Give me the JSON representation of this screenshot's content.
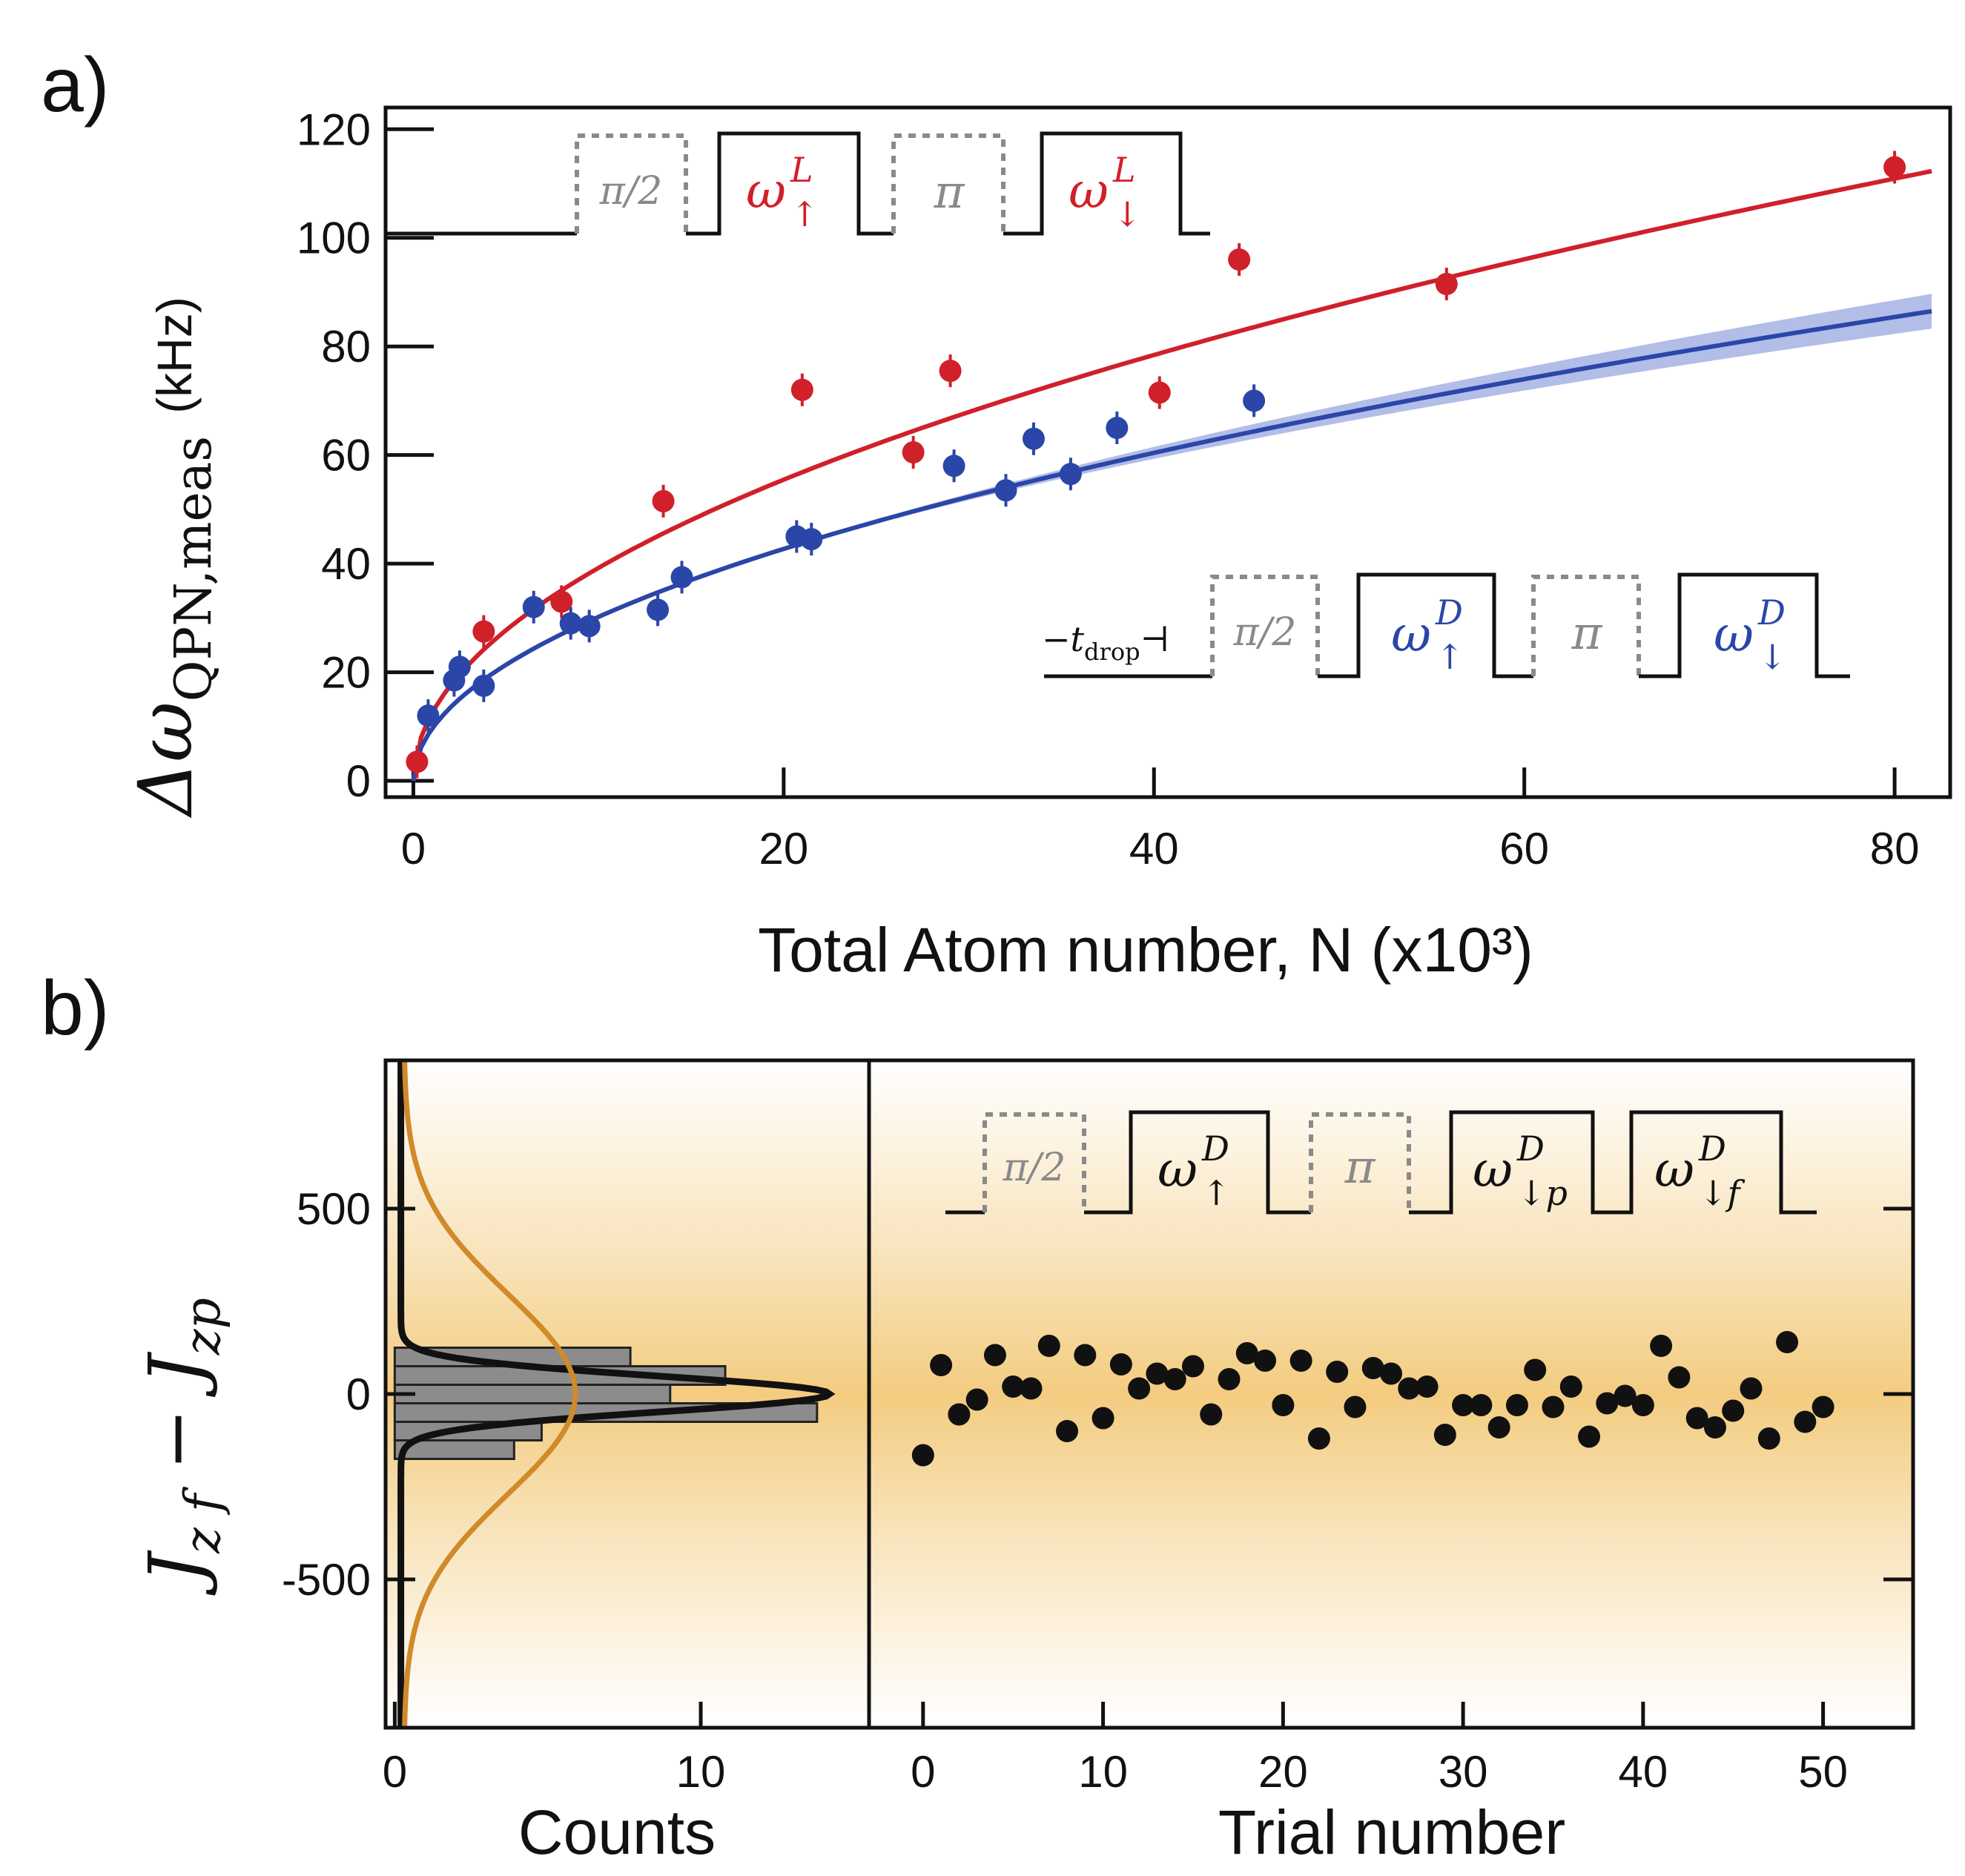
{
  "colors": {
    "red": "#d0202a",
    "blue": "#2a46a8",
    "blue_band": "#aab6e6",
    "gray": "#8a8a8a",
    "black": "#111111",
    "gold": "#d08a2a",
    "bar": "#8c8c8c",
    "bg_gold": "#f3cc80"
  },
  "panel_a": {
    "label": "a)",
    "xlabel": "Total Atom number, N (x10³)",
    "ylabel_main": "Δω",
    "ylabel_sub": "QPN,meas",
    "ylabel_unit": "(kHz)",
    "sequence_L": {
      "pi2": "π/2",
      "w_up": "ω",
      "w_up_sup": "L",
      "w_up_sub": "↑",
      "pi": "π",
      "w_down": "ω",
      "w_down_sup": "L",
      "w_down_sub": "↓"
    },
    "sequence_D": {
      "tdrop": "−t",
      "tdrop_sub": "drop",
      "tdrop_end": "⊣",
      "pi2": "π/2",
      "w_up": "ω",
      "w_up_sup": "D",
      "w_up_sub": "↑",
      "pi": "π",
      "w_down": "ω",
      "w_down_sup": "D",
      "w_down_sub": "↓"
    }
  },
  "panel_b": {
    "label": "b)",
    "xlabel_left": "Counts",
    "xlabel_right": "Trial number",
    "ylabel": "J",
    "ylabel_sub1": "z f",
    "ylabel_minus": " − J",
    "ylabel_sub2": "zp",
    "sequence": {
      "pi2": "π/2",
      "w1": "ω",
      "w1_sup": "D",
      "w1_sub": "↑",
      "pi": "π",
      "w2": "ω",
      "w2_sup": "D",
      "w2_sub": "↓p",
      "w3": "ω",
      "w3_sup": "D",
      "w3_sub": "↓f"
    }
  },
  "chart_data": [
    {
      "type": "scatter",
      "title": "",
      "xlabel": "Total Atom number, N (x10³)",
      "ylabel": "ΔωQPN,meas (kHz)",
      "xlim": [
        -1.5,
        83
      ],
      "ylim": [
        -3,
        124
      ],
      "xticks": [
        0,
        20,
        40,
        60,
        80
      ],
      "yticks": [
        0,
        20,
        40,
        60,
        80,
        100,
        120
      ],
      "series": [
        {
          "name": "red (L)",
          "color": "red",
          "points": [
            [
              0.2,
              3.5
            ],
            [
              3.8,
              27.5
            ],
            [
              8,
              33
            ],
            [
              13.5,
              51.5
            ],
            [
              21,
              72
            ],
            [
              27,
              60.5
            ],
            [
              29,
              75.5
            ],
            [
              40.3,
              71.5
            ],
            [
              44.6,
              96
            ],
            [
              55.8,
              91.5
            ],
            [
              80,
              113
            ]
          ],
          "fit": {
            "model": "a*sqrt(N)",
            "a": 12.4,
            "xrange": [
              0,
              82
            ]
          }
        },
        {
          "name": "blue (D)",
          "color": "blue",
          "points": [
            [
              0.8,
              12
            ],
            [
              2.2,
              18.5
            ],
            [
              2.5,
              21
            ],
            [
              3.8,
              17.5
            ],
            [
              6.5,
              32
            ],
            [
              8.5,
              29
            ],
            [
              9.5,
              28.5
            ],
            [
              13.2,
              31.5
            ],
            [
              14.5,
              37.5
            ],
            [
              20.7,
              45
            ],
            [
              21.5,
              44.5
            ],
            [
              29.2,
              58
            ],
            [
              32,
              53.5
            ],
            [
              33.5,
              63
            ],
            [
              35.5,
              56.5
            ],
            [
              38,
              65
            ],
            [
              45.4,
              70
            ]
          ],
          "fit": {
            "model": "a*sqrt(N)",
            "a": 9.55,
            "xrange": [
              0,
              82
            ],
            "band_from": 22
          }
        }
      ]
    },
    {
      "type": "bar",
      "title": "",
      "xlabel": "Counts",
      "ylabel": "Jzf − Jzp",
      "orientation": "horizontal",
      "xlim": [
        -0.3,
        15.5
      ],
      "ylim": [
        -900,
        900
      ],
      "xticks": [
        0,
        10
      ],
      "yticks": [
        -500,
        0,
        500
      ],
      "bins": [
        [
          -175,
          -125
        ],
        [
          -125,
          -75
        ],
        [
          -75,
          -25
        ],
        [
          -25,
          25
        ],
        [
          25,
          75
        ],
        [
          75,
          125
        ]
      ],
      "counts": [
        3.9,
        4.8,
        13.8,
        9,
        10.8,
        7.7
      ],
      "fits": [
        {
          "name": "narrow gaussian",
          "color": "black",
          "amplitude": 14,
          "sigma": 48,
          "offset": 0.2
        },
        {
          "name": "wide gaussian",
          "color": "gold",
          "amplitude": 5.6,
          "sigma": 270,
          "offset": 0.3
        }
      ]
    },
    {
      "type": "scatter",
      "title": "",
      "xlabel": "Trial number",
      "ylabel": "Jzf − Jzp",
      "xlim": [
        -3,
        55
      ],
      "ylim": [
        -900,
        900
      ],
      "xticks": [
        0,
        10,
        20,
        30,
        40,
        50
      ],
      "yticks": [
        -500,
        0,
        500
      ],
      "x": [
        0,
        1,
        2,
        3,
        4,
        5,
        6,
        7,
        8,
        9,
        10,
        11,
        12,
        13,
        14,
        15,
        16,
        17,
        18,
        19,
        20,
        21,
        22,
        23,
        24,
        25,
        26,
        27,
        28,
        29,
        30,
        31,
        32,
        33,
        34,
        35,
        36,
        37,
        38,
        39,
        40,
        41,
        42,
        43,
        44,
        45,
        46,
        47,
        48,
        49,
        50
      ],
      "y": [
        -165,
        78,
        -55,
        -15,
        105,
        20,
        15,
        130,
        -100,
        105,
        -65,
        80,
        15,
        55,
        40,
        75,
        -55,
        40,
        110,
        90,
        -30,
        90,
        -120,
        60,
        -35,
        70,
        55,
        15,
        20,
        -110,
        -30,
        -30,
        -90,
        -30,
        65,
        -35,
        20,
        -115,
        -25,
        -5,
        -30,
        130,
        45,
        -65,
        -90,
        -45,
        15,
        -120,
        140,
        -75,
        -35
      ]
    }
  ]
}
